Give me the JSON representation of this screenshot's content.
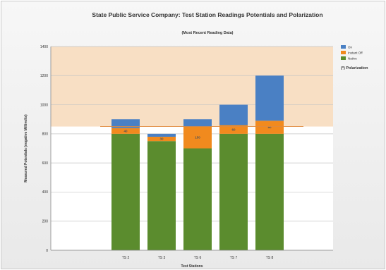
{
  "chart_data": {
    "type": "bar",
    "stacked": true,
    "title": "State Public Service Company: Test Station Readings Potentials and Polarization",
    "subtitle": "(Most Recent Reading Data)",
    "xlabel": "Test Stations",
    "ylabel": "Measured Potentials (negative Millivolts)",
    "categories": [
      "TS 2",
      "TS 3",
      "TS 6",
      "TS 7",
      "TS 8"
    ],
    "ylim": [
      0,
      1400
    ],
    "yticks": [
      0,
      200,
      400,
      600,
      800,
      1000,
      1200,
      1400
    ],
    "grid": true,
    "shaded_band": [
      850,
      1400
    ],
    "reference_line": 850,
    "series": [
      {
        "name": "Native",
        "color": "#5b8c2e",
        "values": [
          800,
          750,
          700,
          800,
          800
        ]
      },
      {
        "name": "Instant Off",
        "color": "#f18a1e",
        "values": [
          40,
          30,
          150,
          60,
          90
        ]
      },
      {
        "name": "On",
        "color": "#4a80c4",
        "values": [
          60,
          20,
          50,
          140,
          310
        ]
      }
    ],
    "polarization_labels": [
      "40",
      "30",
      "150",
      "60",
      "90"
    ],
    "legend_position": "top-right",
    "annotation": "(*) Polarization"
  }
}
